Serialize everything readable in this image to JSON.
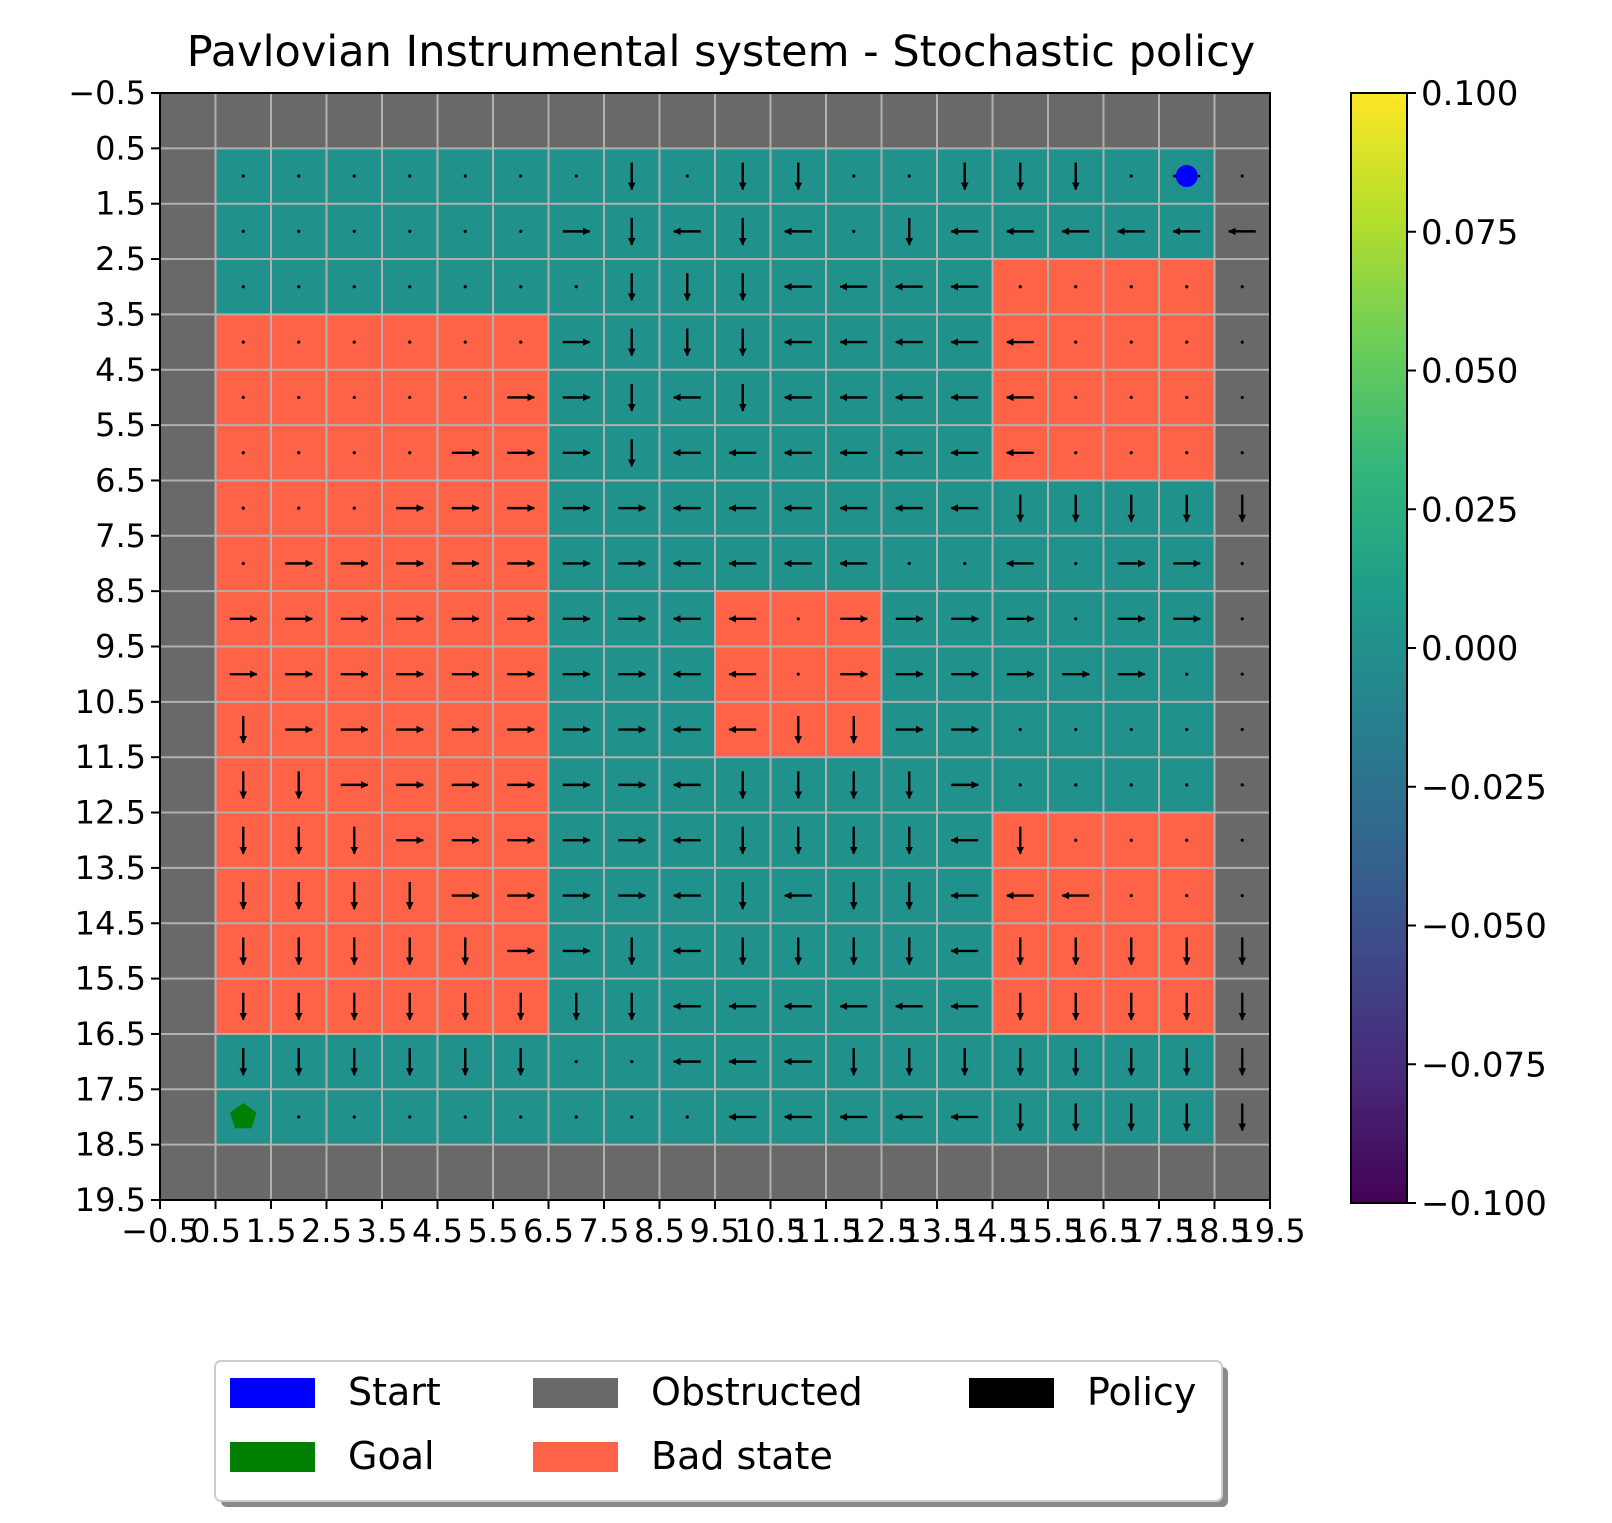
{
  "chart_data": {
    "type": "heatmap",
    "title": "Pavlovian Instrumental system - Stochastic policy",
    "x_ticks": [
      "−0.5",
      "0.5",
      "1.5",
      "2.5",
      "3.5",
      "4.5",
      "5.5",
      "6.5",
      "7.5",
      "8.5",
      "9.5",
      "10.5",
      "11.5",
      "12.5",
      "13.5",
      "14.5",
      "15.5",
      "16.5",
      "17.5",
      "18.5",
      "19.5"
    ],
    "y_ticks": [
      "−0.5",
      "0.5",
      "1.5",
      "2.5",
      "3.5",
      "4.5",
      "5.5",
      "6.5",
      "7.5",
      "8.5",
      "9.5",
      "10.5",
      "11.5",
      "12.5",
      "13.5",
      "14.5",
      "15.5",
      "16.5",
      "17.5",
      "18.5",
      "19.5"
    ],
    "xlim": [
      -0.5,
      19.5
    ],
    "ylim": [
      19.5,
      -0.5
    ],
    "grid": true,
    "grid_size": [
      20,
      20
    ],
    "start": {
      "row": 1,
      "col": 18
    },
    "goal": {
      "row": 18,
      "col": 1
    },
    "bad_state_regions": [
      {
        "rows": [
          4,
          16
        ],
        "cols": [
          1,
          6
        ]
      },
      {
        "rows": [
          9,
          11
        ],
        "cols": [
          10,
          12
        ]
      },
      {
        "rows": [
          3,
          6
        ],
        "cols": [
          15,
          18
        ]
      },
      {
        "rows": [
          13,
          16
        ],
        "cols": [
          15,
          18
        ]
      }
    ],
    "colors": {
      "free": "#21918c",
      "obstructed": "#696969",
      "bad_state": "#ff6347",
      "start": "#0000ff",
      "goal": "#008000",
      "policy": "#000000"
    },
    "policy_arrows": [
      "0 0 0 0 0 0 0 2 0 2 2 0 0 2 2 2 0 1 0",
      "0 0 0 0 0 0 3 2 1 2 1 0 2 1 1 1 1 1 1",
      "0 0 0 0 0 0 0 2 2 2 1 1 1 1 0 0 0 0 0",
      "0 0 0 0 0 0 3 2 2 2 1 1 1 1 1 0 0 0 0",
      "0 0 0 0 0 3 3 2 1 2 1 1 1 1 1 0 0 0 0",
      "0 0 0 0 3 3 3 2 1 1 1 1 1 1 1 0 0 0 0",
      "0 0 0 3 3 3 3 3 1 1 1 1 1 1 2 2 2 2 2",
      "0 3 3 3 3 3 3 3 1 1 1 1 0 0 1 0 3 3 0",
      "3 3 3 3 3 3 3 3 1 1 0 3 3 3 3 0 3 3 0",
      "3 3 3 3 3 3 3 3 1 1 0 3 3 3 3 3 3 0 0",
      "2 3 3 3 3 3 3 3 1 1 2 2 3 3 0 0 0 0 0",
      "2 2 3 3 3 3 3 3 1 2 2 2 2 3 0 0 0 0 0",
      "2 2 2 3 3 3 3 3 1 2 2 2 2 1 2 0 0 0 0",
      "2 2 2 2 3 3 3 3 1 2 1 2 2 1 1 1 0 0 0",
      "2 2 2 2 2 3 3 2 1 2 2 2 2 1 2 2 2 2 2",
      "2 2 2 2 2 2 2 2 1 1 1 1 1 1 2 2 2 2 2",
      "2 2 2 2 2 2 0 0 1 1 1 2 2 2 2 2 2 2 2",
      "0 0 0 0 0 0 0 0 0 1 1 1 1 1 2 2 2 2 2"
    ],
    "colorbar": {
      "ticks": [
        "0.100",
        "0.075",
        "0.050",
        "0.025",
        "0.000",
        "−0.025",
        "−0.050",
        "−0.075",
        "−0.100"
      ],
      "range": [
        -0.1,
        0.1
      ],
      "colormap": "viridis"
    },
    "legend": {
      "position": "lower center",
      "entries": [
        {
          "label": "Start",
          "color": "#0000ff"
        },
        {
          "label": "Goal",
          "color": "#008000"
        },
        {
          "label": "Obstructed",
          "color": "#696969"
        },
        {
          "label": "Bad state",
          "color": "#ff6347"
        },
        {
          "label": "Policy",
          "color": "#000000"
        }
      ]
    }
  }
}
